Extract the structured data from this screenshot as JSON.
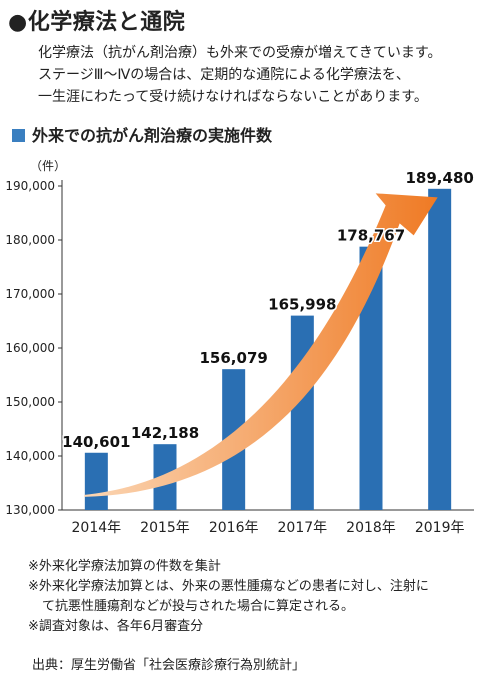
{
  "header": {
    "title": "●化学療法と通院",
    "intro": [
      "化学療法（抗がん剤治療）も外来での受療が増えてきています。",
      "ステージⅢ～Ⅳの場合は、定期的な通院による化学療法を、",
      "一生涯にわたって受け続けなければならないことがあります。"
    ]
  },
  "chart_heading": "外来での抗がん剤治療の実施件数",
  "chart_data": {
    "type": "bar",
    "title": "外来での抗がん剤治療の実施件数",
    "ylabel": "（件）",
    "categories": [
      "2014年",
      "2015年",
      "2016年",
      "2017年",
      "2018年",
      "2019年"
    ],
    "values": [
      140601,
      142188,
      156079,
      165998,
      178767,
      189480
    ],
    "value_labels": [
      "140,601",
      "142,188",
      "156,079",
      "165,998",
      "178,767",
      "189,480"
    ],
    "ylim": [
      130000,
      190000
    ],
    "yticks": [
      130000,
      140000,
      150000,
      160000,
      170000,
      180000,
      190000
    ],
    "ytick_labels": [
      "130,000",
      "140,000",
      "150,000",
      "160,000",
      "170,000",
      "180,000",
      "190,000"
    ],
    "grid": false,
    "colors": {
      "bar": "#2a6fb3",
      "arrow_start": "#fbd6b4",
      "arrow_end": "#ef7a24"
    },
    "annotation": "upward trend arrow"
  },
  "notes": [
    "※外来化学療法加算の件数を集計",
    "※外来化学療法加算とは、外来の悪性腫瘍などの患者に対し、注射に",
    "て抗悪性腫瘍剤などが投与された場合に算定される。",
    "※調査対象は、各年6月審査分"
  ],
  "source": "出典：厚生労働省「社会医療診療行為別統計」"
}
